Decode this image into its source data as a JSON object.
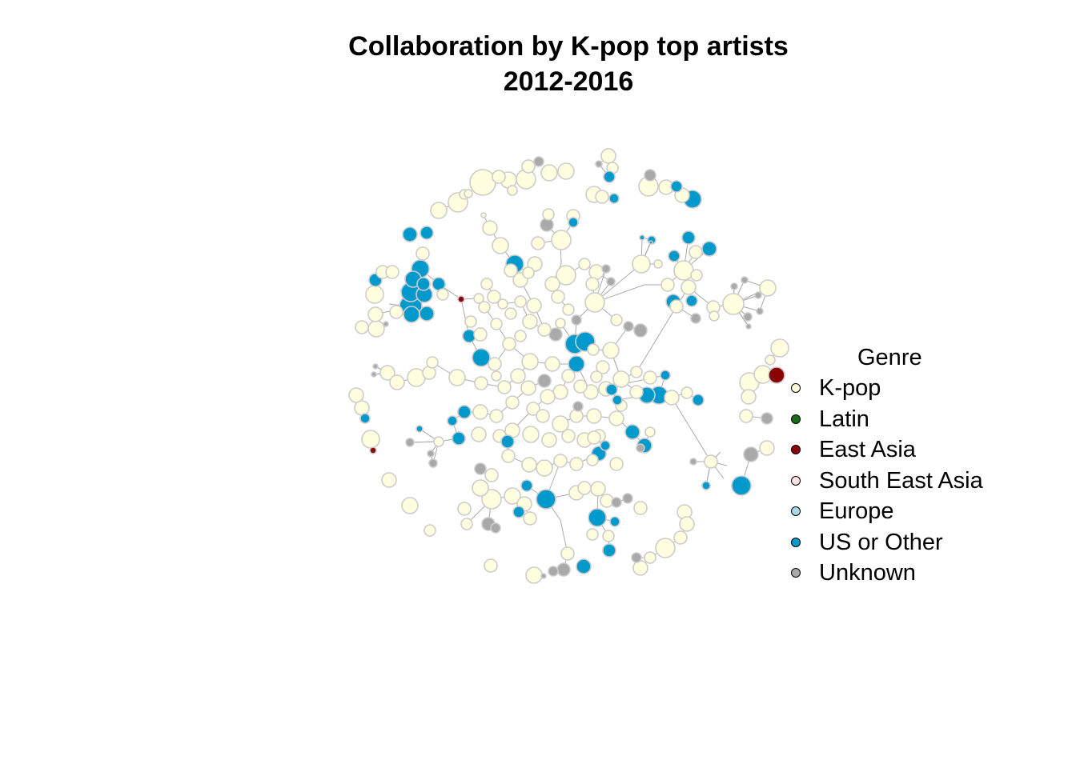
{
  "title": {
    "line1": "Collaboration by K-pop top artists",
    "line2": "2012-2016"
  },
  "legend": {
    "title": "Genre",
    "items": [
      {
        "label": "K-pop",
        "color": "#FFFFE0"
      },
      {
        "label": "Latin",
        "color": "#1A6B1A"
      },
      {
        "label": "East Asia",
        "color": "#8B0000"
      },
      {
        "label": "South East Asia",
        "color": "#FFE4E1"
      },
      {
        "label": "Europe",
        "color": "#ADD8E6"
      },
      {
        "label": "US or Other",
        "color": "#0099CC"
      },
      {
        "label": "Unknown",
        "color": "#A9A9A9"
      }
    ]
  },
  "styles": {
    "node_border": "#CCCCCC",
    "edge_color": "#AAAAAA"
  }
}
